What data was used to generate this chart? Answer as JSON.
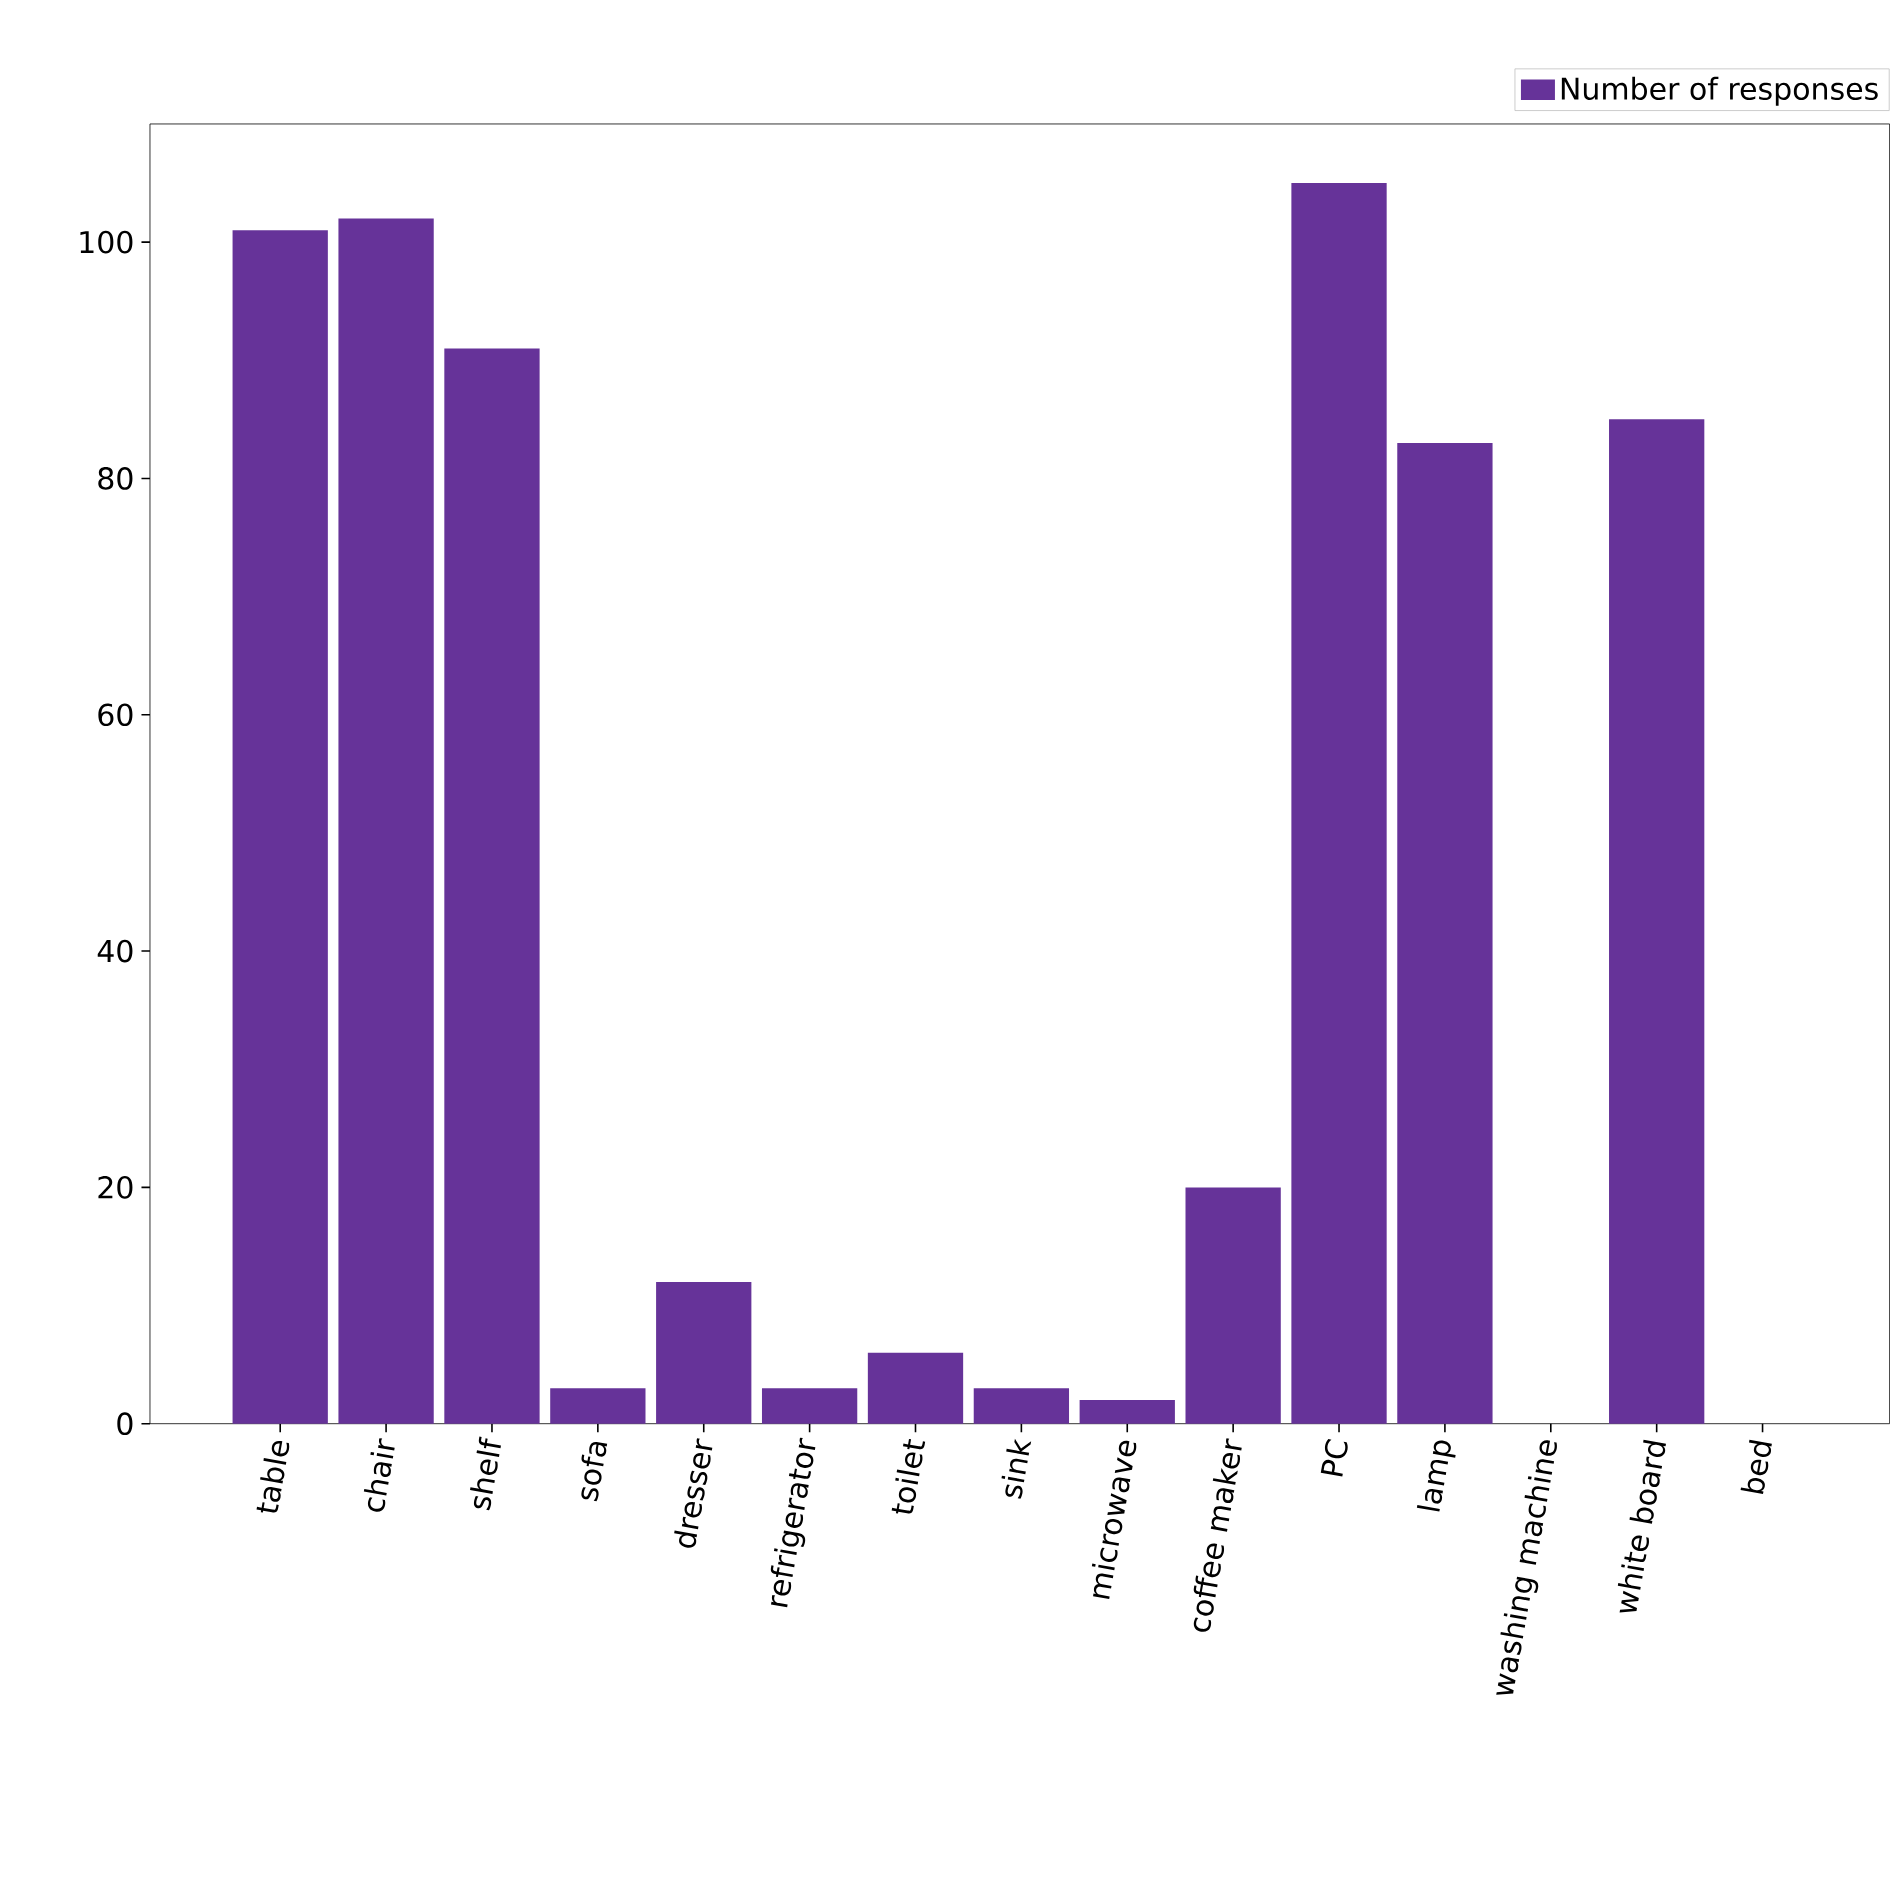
{
  "chart_data": {
    "type": "bar",
    "categories": [
      "table",
      "chair",
      "shelf",
      "sofa",
      "dresser",
      "refrigerator",
      "toilet",
      "sink",
      "microwave",
      "coffee maker",
      "PC",
      "lamp",
      "washing machine",
      "white board",
      "bed"
    ],
    "series": [
      {
        "name": "Number of responses",
        "color": "#663399",
        "values": [
          101,
          102,
          91,
          3,
          12,
          3,
          6,
          3,
          2,
          20,
          105,
          83,
          0,
          85,
          0
        ]
      }
    ],
    "ylim": [
      0,
      110
    ],
    "yticks": [
      0,
      20,
      40,
      60,
      80,
      100
    ],
    "legend": "top right"
  }
}
